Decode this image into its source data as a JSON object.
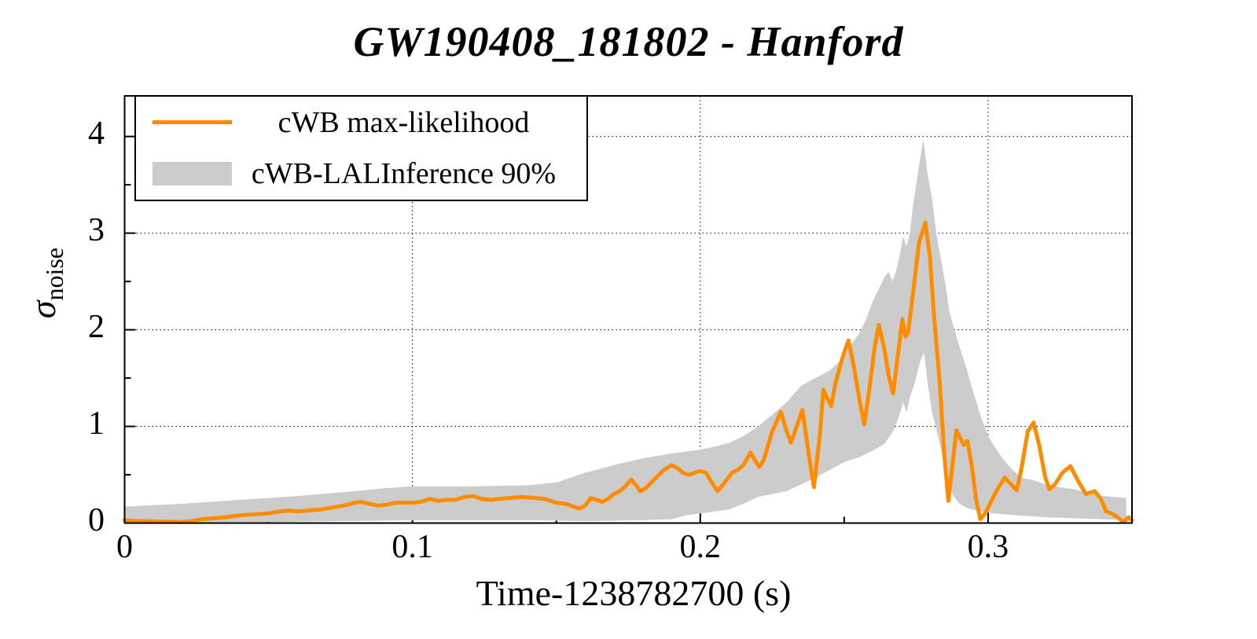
{
  "title": "GW190408_181802 - Hanford",
  "axes": {
    "x_label": "Time-1238782700 (s)",
    "y_label_symbol": "σ",
    "y_label_subscript": "noise",
    "x_range": [
      0,
      0.35
    ],
    "y_range": [
      0,
      4.42
    ],
    "x_ticks": [
      {
        "value": 0.0,
        "label": "0"
      },
      {
        "value": 0.1,
        "label": "0.1"
      },
      {
        "value": 0.2,
        "label": "0.2"
      },
      {
        "value": 0.3,
        "label": "0.3"
      }
    ],
    "x_minor_ticks": [
      0.05,
      0.15,
      0.25
    ],
    "y_ticks": [
      {
        "value": 0,
        "label": "0"
      },
      {
        "value": 1,
        "label": "1"
      },
      {
        "value": 2,
        "label": "2"
      },
      {
        "value": 3,
        "label": "3"
      },
      {
        "value": 4,
        "label": "4"
      }
    ],
    "y_minor_ticks": [
      0.5,
      1.5,
      2.5,
      3.5
    ],
    "grid_style": "dotted-at-major-ticks"
  },
  "legend": {
    "entries": [
      {
        "label": "cWB max-likelihood",
        "swatch": "line",
        "color": "#ff8c00"
      },
      {
        "label": "cWB-LALInference 90%",
        "swatch": "band",
        "color": "#cccccc"
      }
    ]
  },
  "colors": {
    "line": "#ff8c00",
    "band": "#cccccc",
    "frame": "#000000",
    "grid": "#000000",
    "background": "#ffffff"
  },
  "chart_data": {
    "type": "line",
    "title": "GW190408_181802 - Hanford",
    "xlabel": "Time-1238782700 (s)",
    "ylabel": "sigma_noise",
    "xlim": [
      0,
      0.35
    ],
    "ylim": [
      0,
      4.42
    ],
    "legend_position": "top-left",
    "grid": true,
    "series": [
      {
        "name": "cWB max-likelihood",
        "type": "line",
        "color": "#ff8c00",
        "points": [
          [
            0,
            0.03
          ],
          [
            0.004,
            0.02
          ],
          [
            0.008,
            0.02
          ],
          [
            0.012,
            0.015
          ],
          [
            0.016,
            0.015
          ],
          [
            0.019,
            0.01
          ],
          [
            0.023,
            0.02
          ],
          [
            0.027,
            0.04
          ],
          [
            0.031,
            0.05
          ],
          [
            0.035,
            0.06
          ],
          [
            0.04,
            0.08
          ],
          [
            0.045,
            0.09
          ],
          [
            0.05,
            0.1
          ],
          [
            0.054,
            0.12
          ],
          [
            0.057,
            0.13
          ],
          [
            0.06,
            0.12
          ],
          [
            0.064,
            0.13
          ],
          [
            0.068,
            0.14
          ],
          [
            0.072,
            0.16
          ],
          [
            0.076,
            0.18
          ],
          [
            0.08,
            0.21
          ],
          [
            0.082,
            0.22
          ],
          [
            0.085,
            0.2
          ],
          [
            0.088,
            0.18
          ],
          [
            0.091,
            0.19
          ],
          [
            0.094,
            0.21
          ],
          [
            0.097,
            0.21
          ],
          [
            0.1,
            0.21
          ],
          [
            0.103,
            0.22
          ],
          [
            0.106,
            0.25
          ],
          [
            0.109,
            0.23
          ],
          [
            0.112,
            0.24
          ],
          [
            0.115,
            0.24
          ],
          [
            0.118,
            0.27
          ],
          [
            0.121,
            0.28
          ],
          [
            0.124,
            0.25
          ],
          [
            0.127,
            0.24
          ],
          [
            0.13,
            0.25
          ],
          [
            0.134,
            0.26
          ],
          [
            0.138,
            0.27
          ],
          [
            0.142,
            0.26
          ],
          [
            0.146,
            0.25
          ],
          [
            0.15,
            0.21
          ],
          [
            0.153,
            0.2
          ],
          [
            0.156,
            0.17
          ],
          [
            0.158,
            0.15
          ],
          [
            0.16,
            0.18
          ],
          [
            0.162,
            0.26
          ],
          [
            0.164,
            0.24
          ],
          [
            0.166,
            0.22
          ],
          [
            0.168,
            0.25
          ],
          [
            0.17,
            0.3
          ],
          [
            0.172,
            0.33
          ],
          [
            0.174,
            0.38
          ],
          [
            0.176,
            0.45
          ],
          [
            0.178,
            0.38
          ],
          [
            0.179,
            0.33
          ],
          [
            0.181,
            0.36
          ],
          [
            0.183,
            0.42
          ],
          [
            0.185,
            0.48
          ],
          [
            0.187,
            0.54
          ],
          [
            0.19,
            0.6
          ],
          [
            0.192,
            0.57
          ],
          [
            0.194,
            0.52
          ],
          [
            0.196,
            0.5
          ],
          [
            0.198,
            0.52
          ],
          [
            0.2,
            0.54
          ],
          [
            0.202,
            0.52
          ],
          [
            0.204,
            0.42
          ],
          [
            0.206,
            0.33
          ],
          [
            0.208,
            0.4
          ],
          [
            0.211,
            0.52
          ],
          [
            0.213,
            0.55
          ],
          [
            0.215,
            0.6
          ],
          [
            0.2175,
            0.73
          ],
          [
            0.219,
            0.65
          ],
          [
            0.2205,
            0.58
          ],
          [
            0.222,
            0.65
          ],
          [
            0.225,
            0.95
          ],
          [
            0.228,
            1.15
          ],
          [
            0.23,
            0.95
          ],
          [
            0.2315,
            0.83
          ],
          [
            0.2335,
            1.0
          ],
          [
            0.2355,
            1.17
          ],
          [
            0.2375,
            0.75
          ],
          [
            0.2395,
            0.37
          ],
          [
            0.2415,
            0.9
          ],
          [
            0.2428,
            1.38
          ],
          [
            0.244,
            1.3
          ],
          [
            0.2455,
            1.21
          ],
          [
            0.247,
            1.45
          ],
          [
            0.2495,
            1.72
          ],
          [
            0.2515,
            1.89
          ],
          [
            0.2535,
            1.6
          ],
          [
            0.2553,
            1.28
          ],
          [
            0.257,
            1.02
          ],
          [
            0.2588,
            1.4
          ],
          [
            0.2605,
            1.8
          ],
          [
            0.262,
            2.05
          ],
          [
            0.2638,
            1.83
          ],
          [
            0.2655,
            1.52
          ],
          [
            0.267,
            1.34
          ],
          [
            0.2685,
            1.7
          ],
          [
            0.2702,
            2.11
          ],
          [
            0.2713,
            1.93
          ],
          [
            0.2722,
            1.97
          ],
          [
            0.274,
            2.4
          ],
          [
            0.276,
            2.9
          ],
          [
            0.2782,
            3.11
          ],
          [
            0.2798,
            2.75
          ],
          [
            0.2812,
            2.15
          ],
          [
            0.2832,
            1.45
          ],
          [
            0.2848,
            0.7
          ],
          [
            0.2862,
            0.23
          ],
          [
            0.2876,
            0.6
          ],
          [
            0.289,
            0.96
          ],
          [
            0.2903,
            0.88
          ],
          [
            0.2915,
            0.81
          ],
          [
            0.2928,
            0.85
          ],
          [
            0.2943,
            0.6
          ],
          [
            0.2958,
            0.25
          ],
          [
            0.2973,
            0.04
          ],
          [
            0.299,
            0.1
          ],
          [
            0.301,
            0.22
          ],
          [
            0.3032,
            0.35
          ],
          [
            0.3058,
            0.47
          ],
          [
            0.308,
            0.4
          ],
          [
            0.31,
            0.34
          ],
          [
            0.3118,
            0.6
          ],
          [
            0.3138,
            0.95
          ],
          [
            0.3158,
            1.04
          ],
          [
            0.3178,
            0.8
          ],
          [
            0.3198,
            0.48
          ],
          [
            0.3213,
            0.35
          ],
          [
            0.3232,
            0.4
          ],
          [
            0.3258,
            0.52
          ],
          [
            0.3286,
            0.59
          ],
          [
            0.331,
            0.45
          ],
          [
            0.334,
            0.3
          ],
          [
            0.337,
            0.33
          ],
          [
            0.3392,
            0.25
          ],
          [
            0.341,
            0.12
          ],
          [
            0.343,
            0.1
          ],
          [
            0.345,
            0.06
          ],
          [
            0.347,
            0.01
          ],
          [
            0.3488,
            0.06
          ],
          [
            0.35,
            0.03
          ]
        ]
      },
      {
        "name": "cWB-LALInference 90%",
        "type": "band",
        "color": "#cccccc",
        "upper": [
          [
            0,
            0.17
          ],
          [
            0.02,
            0.2
          ],
          [
            0.04,
            0.24
          ],
          [
            0.06,
            0.28
          ],
          [
            0.08,
            0.33
          ],
          [
            0.09,
            0.36
          ],
          [
            0.1,
            0.38
          ],
          [
            0.12,
            0.38
          ],
          [
            0.14,
            0.39
          ],
          [
            0.15,
            0.42
          ],
          [
            0.16,
            0.52
          ],
          [
            0.17,
            0.6
          ],
          [
            0.18,
            0.67
          ],
          [
            0.19,
            0.72
          ],
          [
            0.2,
            0.76
          ],
          [
            0.205,
            0.79
          ],
          [
            0.21,
            0.83
          ],
          [
            0.215,
            0.9
          ],
          [
            0.22,
            1.0
          ],
          [
            0.225,
            1.12
          ],
          [
            0.23,
            1.25
          ],
          [
            0.235,
            1.42
          ],
          [
            0.24,
            1.5
          ],
          [
            0.245,
            1.58
          ],
          [
            0.2475,
            1.65
          ],
          [
            0.25,
            1.72
          ],
          [
            0.2525,
            1.85
          ],
          [
            0.255,
            1.95
          ],
          [
            0.2575,
            2.1
          ],
          [
            0.26,
            2.3
          ],
          [
            0.2625,
            2.45
          ],
          [
            0.264,
            2.55
          ],
          [
            0.2655,
            2.6
          ],
          [
            0.2668,
            2.5
          ],
          [
            0.268,
            2.6
          ],
          [
            0.2695,
            2.8
          ],
          [
            0.2705,
            2.97
          ],
          [
            0.2717,
            2.86
          ],
          [
            0.2728,
            3.0
          ],
          [
            0.274,
            3.3
          ],
          [
            0.276,
            3.7
          ],
          [
            0.2775,
            3.97
          ],
          [
            0.279,
            3.6
          ],
          [
            0.2805,
            3.37
          ],
          [
            0.282,
            3.0
          ],
          [
            0.2835,
            2.75
          ],
          [
            0.285,
            2.5
          ],
          [
            0.2865,
            2.2
          ],
          [
            0.288,
            2.03
          ],
          [
            0.29,
            1.83
          ],
          [
            0.2925,
            1.6
          ],
          [
            0.295,
            1.34
          ],
          [
            0.2975,
            1.1
          ],
          [
            0.3,
            0.9
          ],
          [
            0.3025,
            0.78
          ],
          [
            0.305,
            0.67
          ],
          [
            0.3075,
            0.58
          ],
          [
            0.31,
            0.51
          ],
          [
            0.3125,
            0.46
          ],
          [
            0.315,
            0.45
          ],
          [
            0.32,
            0.4
          ],
          [
            0.325,
            0.37
          ],
          [
            0.33,
            0.35
          ],
          [
            0.335,
            0.31
          ],
          [
            0.34,
            0.28
          ],
          [
            0.344,
            0.27
          ],
          [
            0.348,
            0.26
          ]
        ],
        "lower": [
          [
            0,
            0.01
          ],
          [
            0.05,
            0.01
          ],
          [
            0.1,
            0.03
          ],
          [
            0.14,
            0.03
          ],
          [
            0.16,
            0.02
          ],
          [
            0.18,
            0.03
          ],
          [
            0.19,
            0.04
          ],
          [
            0.195,
            0.08
          ],
          [
            0.2,
            0.1
          ],
          [
            0.205,
            0.12
          ],
          [
            0.21,
            0.14
          ],
          [
            0.215,
            0.2
          ],
          [
            0.22,
            0.27
          ],
          [
            0.23,
            0.33
          ],
          [
            0.235,
            0.4
          ],
          [
            0.24,
            0.47
          ],
          [
            0.245,
            0.55
          ],
          [
            0.25,
            0.63
          ],
          [
            0.255,
            0.68
          ],
          [
            0.26,
            0.75
          ],
          [
            0.264,
            0.82
          ],
          [
            0.267,
            0.95
          ],
          [
            0.269,
            1.1
          ],
          [
            0.2705,
            1.25
          ],
          [
            0.2717,
            1.15
          ],
          [
            0.273,
            1.32
          ],
          [
            0.2745,
            1.45
          ],
          [
            0.2765,
            1.68
          ],
          [
            0.2777,
            1.77
          ],
          [
            0.279,
            1.45
          ],
          [
            0.2805,
            1.15
          ],
          [
            0.2825,
            0.91
          ],
          [
            0.2845,
            0.65
          ],
          [
            0.2862,
            0.42
          ],
          [
            0.288,
            0.28
          ],
          [
            0.29,
            0.2
          ],
          [
            0.293,
            0.15
          ],
          [
            0.2975,
            0.12
          ],
          [
            0.302,
            0.1
          ],
          [
            0.31,
            0.08
          ],
          [
            0.32,
            0.06
          ],
          [
            0.33,
            0.05
          ],
          [
            0.34,
            0.04
          ],
          [
            0.348,
            0.03
          ]
        ]
      }
    ]
  }
}
